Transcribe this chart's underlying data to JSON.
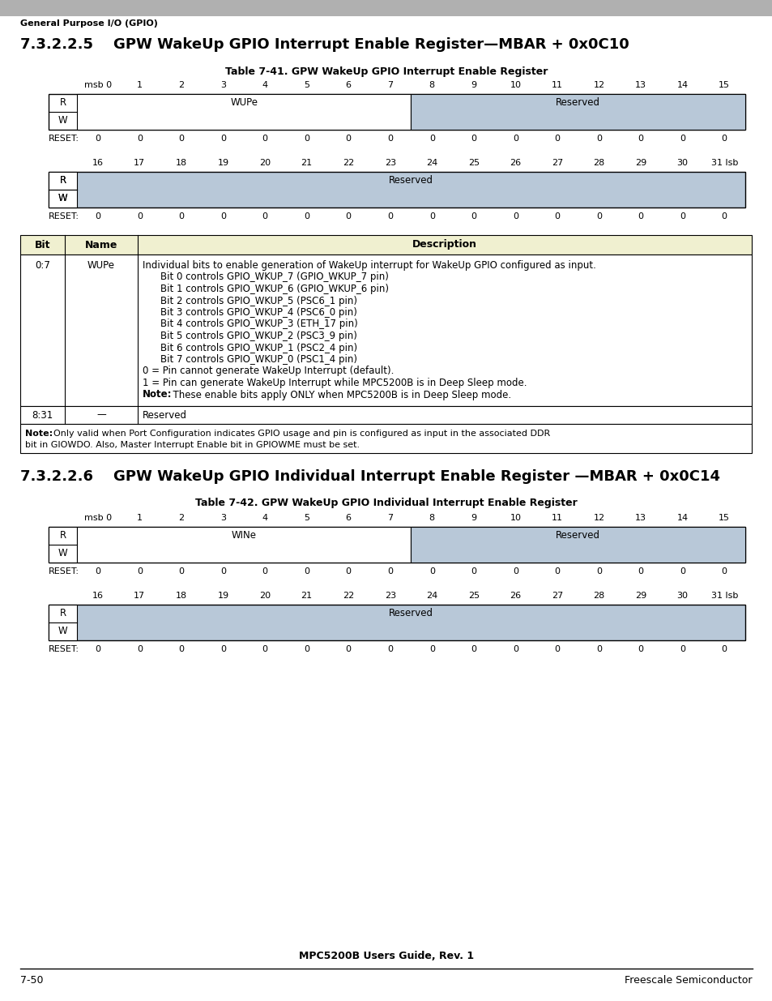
{
  "bg_color": "#ffffff",
  "header_bar_color": "#b0b0b0",
  "header_text": "General Purpose I/O (GPIO)",
  "section1_title": "7.3.2.2.5    GPW WakeUp GPIO Interrupt Enable Register—MBAR + 0x0C10",
  "table1_title": "Table 7-41. GPW WakeUp GPIO Interrupt Enable Register",
  "section2_title": "7.3.2.2.6    GPW WakeUp GPIO Individual Interrupt Enable Register —MBAR + 0x0C14",
  "table2_title": "Table 7-42. GPW WakeUp GPIO Individual Interrupt Enable Register",
  "footer_center": "MPC5200B Users Guide, Rev. 1",
  "footer_left": "7-50",
  "footer_right": "Freescale Semiconductor",
  "reg_header_top": [
    "msb 0",
    "1",
    "2",
    "3",
    "4",
    "5",
    "6",
    "7",
    "8",
    "9",
    "10",
    "11",
    "12",
    "13",
    "14",
    "15"
  ],
  "reg_header_bottom": [
    "16",
    "17",
    "18",
    "19",
    "20",
    "21",
    "22",
    "23",
    "24",
    "25",
    "26",
    "27",
    "28",
    "29",
    "30",
    "31 lsb"
  ],
  "reserved_color": "#b8c8d8",
  "table_header_color": "#f0f0d0",
  "desc_lines": [
    {
      "text": "Individual bits to enable generation of WakeUp interrupt for WakeUp GPIO configured as input.",
      "indent": 0
    },
    {
      "text": "Bit 0 controls GPIO_WKUP_7 (GPIO_WKUP_7 pin)",
      "indent": 1
    },
    {
      "text": "Bit 1 controls GPIO_WKUP_6 (GPIO_WKUP_6 pin)",
      "indent": 1
    },
    {
      "text": "Bit 2 controls GPIO_WKUP_5 (PSC6_1 pin)",
      "indent": 1
    },
    {
      "text": "Bit 3 controls GPIO_WKUP_4 (PSC6_0 pin)",
      "indent": 1
    },
    {
      "text": "Bit 4 controls GPIO_WKUP_3 (ETH_17 pin)",
      "indent": 1
    },
    {
      "text": "Bit 5 controls GPIO_WKUP_2 (PSC3_9 pin)",
      "indent": 1
    },
    {
      "text": "Bit 6 controls GPIO_WKUP_1 (PSC2_4 pin)",
      "indent": 1
    },
    {
      "text": "Bit 7 controls GPIO_WKUP_0 (PSC1_4 pin)",
      "indent": 1
    },
    {
      "text": "0 = Pin cannot generate WakeUp Interrupt (default).",
      "indent": 0
    },
    {
      "text": "1 = Pin can generate WakeUp Interrupt while MPC5200B is in Deep Sleep mode.",
      "indent": 0
    },
    {
      "text": "Note:  These enable bits apply ONLY when MPC5200B is in Deep Sleep mode.",
      "indent": 0,
      "note": true
    }
  ],
  "bottom_note_bold": "Note:",
  "bottom_note_rest": "  Only valid when Port Configuration indicates GPIO usage and pin is configured as input in the associated DDR bit in GIOWDO. Also, Master Interrupt Enable bit in GPIOWME must be set."
}
